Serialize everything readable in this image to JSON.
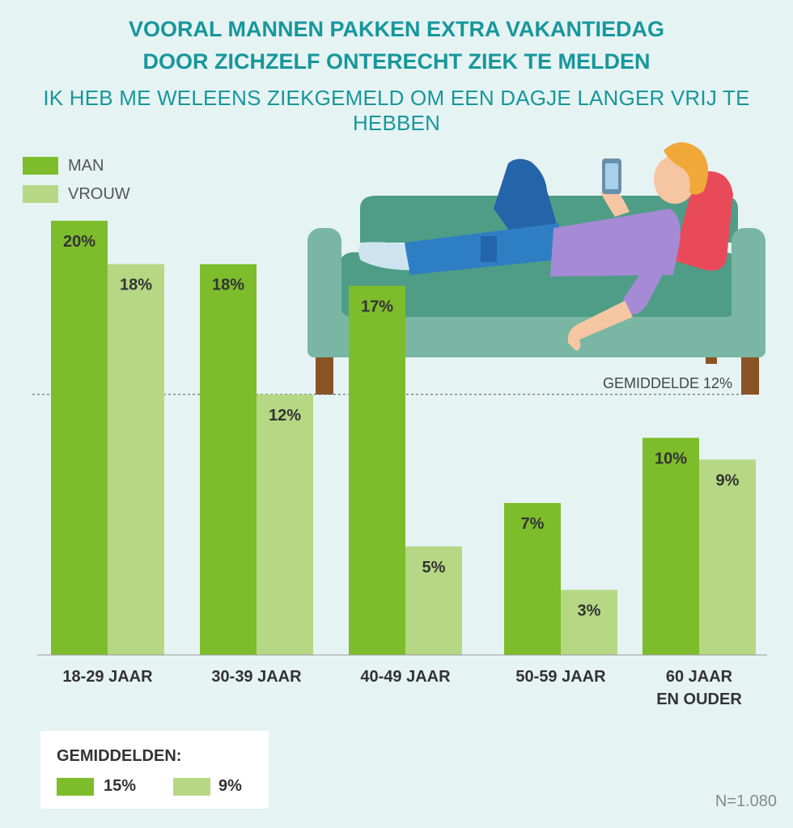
{
  "title_line1": "VOORAL MANNEN PAKKEN EXTRA VAKANTIEDAG",
  "title_line2": "DOOR ZICHZELF ONTERECHT ZIEK TE MELDEN",
  "subtitle": "IK HEB ME WELEENS ZIEKGEMELD OM  EEN DAGJE LANGER VRIJ TE HEBBEN",
  "legend": {
    "man": "MAN",
    "vrouw": "VROUW"
  },
  "colors": {
    "man": "#7dbd2b",
    "vrouw": "#b6d884",
    "title": "#17979b",
    "background": "#e6f3f3"
  },
  "averages": {
    "title": "GEMIDDELDEN:",
    "man": "15%",
    "vrouw": "9%"
  },
  "sample_size": "N=1.080",
  "illustration": "person-on-couch-with-phone",
  "chart_data": {
    "type": "bar",
    "title": "VOORAL MANNEN PAKKEN EXTRA VAKANTIEDAG DOOR ZICHZELF ONTERECHT ZIEK TE MELDEN",
    "subtitle": "IK HEB ME WELEENS ZIEKGEMELD OM  EEN DAGJE LANGER VRIJ TE HEBBEN",
    "categories": [
      [
        "18-29 JAAR"
      ],
      [
        "30-39 JAAR"
      ],
      [
        "40-49 JAAR"
      ],
      [
        "50-59 JAAR"
      ],
      [
        "60 JAAR",
        "EN OUDER"
      ]
    ],
    "series": [
      {
        "name": "MAN",
        "values": [
          20,
          18,
          17,
          7,
          10
        ],
        "labels": [
          "20%",
          "18%",
          "17%",
          "7%",
          "10%"
        ]
      },
      {
        "name": "VROUW",
        "values": [
          18,
          12,
          5,
          3,
          9
        ],
        "labels": [
          "18%",
          "12%",
          "5%",
          "3%",
          "9%"
        ]
      }
    ],
    "reference_line": {
      "value": 12,
      "label": "GEMIDDELDE 12%"
    },
    "ylim": [
      0,
      20
    ],
    "legend_position": "top-left",
    "grid": false
  }
}
